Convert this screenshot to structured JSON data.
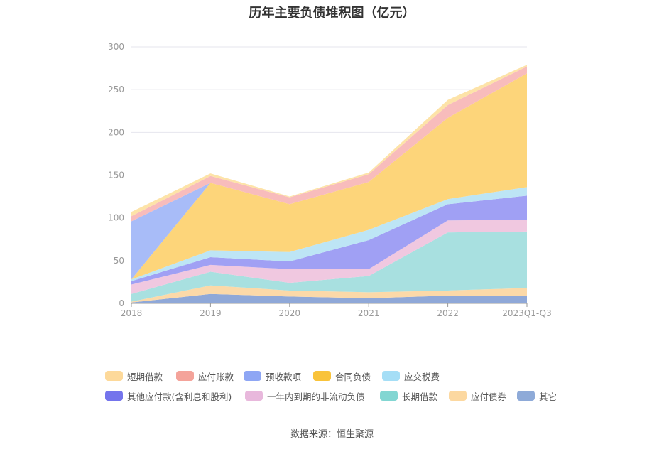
{
  "title": "历年主要负债堆积图（亿元）",
  "source": "数据来源：恒生聚源",
  "chart_data": {
    "type": "area",
    "stacked": true,
    "title": "历年主要负债堆积图（亿元）",
    "categories": [
      "2018",
      "2019",
      "2020",
      "2021",
      "2022",
      "2023Q1-Q3"
    ],
    "ylim": [
      0,
      300
    ],
    "yticks": [
      0,
      50,
      100,
      150,
      200,
      250,
      300
    ],
    "grid": true,
    "legend_position": "bottom",
    "series": [
      {
        "name": "其它",
        "color": "#8fa8d8",
        "values": [
          1,
          11,
          8,
          6,
          9,
          9
        ]
      },
      {
        "name": "应付债券",
        "color": "#fcd9a8",
        "values": [
          1,
          10,
          7,
          7,
          6,
          9
        ]
      },
      {
        "name": "长期借款",
        "color": "#a8e0e0",
        "values": [
          9,
          16,
          9,
          19,
          68,
          66
        ]
      },
      {
        "name": "一年内到期的非流动负债",
        "color": "#f0c8e0",
        "values": [
          11,
          8,
          16,
          8,
          14,
          14
        ]
      },
      {
        "name": "其他应付款(含利息和股利)",
        "color": "#a0a0f4",
        "values": [
          4,
          9,
          9,
          34,
          19,
          28
        ]
      },
      {
        "name": "应交税费",
        "color": "#bde5f5",
        "values": [
          2,
          8,
          11,
          12,
          6,
          10
        ]
      },
      {
        "name": "合同负债",
        "color": "#fdd57a",
        "values": [
          0,
          79,
          56,
          56,
          95,
          133
        ]
      },
      {
        "name": "预收款项",
        "color": "#a8bcf8",
        "values": [
          68,
          0,
          0,
          0,
          0,
          0
        ]
      },
      {
        "name": "应付账款",
        "color": "#f8bcbc",
        "values": [
          6,
          8,
          8,
          9,
          15,
          8
        ]
      },
      {
        "name": "短期借款",
        "color": "#fde3a8",
        "values": [
          5,
          3,
          1,
          2,
          6,
          2
        ]
      }
    ]
  },
  "legend": {
    "items": [
      {
        "label": "短期借款",
        "color": "#fdd99a"
      },
      {
        "label": "应付账款",
        "color": "#f4a39a"
      },
      {
        "label": "预收款项",
        "color": "#8ea6f4"
      },
      {
        "label": "合同负债",
        "color": "#f9c33a"
      },
      {
        "label": "应交税费",
        "color": "#a5def6"
      },
      {
        "label": "其他应付款(含利息和股利)",
        "color": "#7474ec"
      },
      {
        "label": "一年内到期的非流动负债",
        "color": "#e8b8dc"
      },
      {
        "label": "长期借款",
        "color": "#82d6d2"
      },
      {
        "label": "应付债券",
        "color": "#fcd8a0"
      },
      {
        "label": "其它",
        "color": "#8eaad8"
      }
    ]
  }
}
